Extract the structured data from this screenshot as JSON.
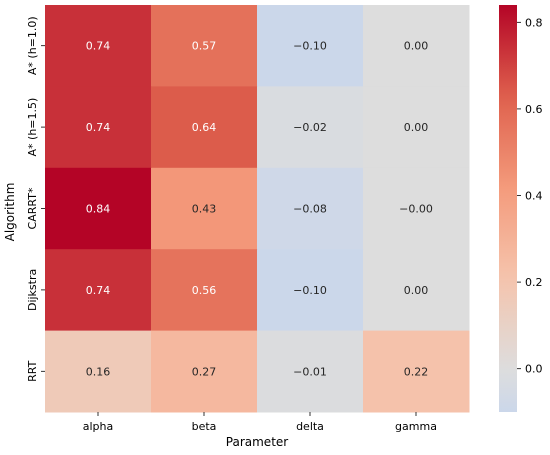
{
  "chart_data": {
    "type": "heatmap",
    "title": "",
    "xlabel": "Parameter",
    "ylabel": "Algorithm",
    "x_categories": [
      "alpha",
      "beta",
      "delta",
      "gamma"
    ],
    "y_categories": [
      "A* (h=1.0)",
      "A* (h=1.5)",
      "CARRT*",
      "Dijkstra",
      "RRT"
    ],
    "values": [
      [
        0.74,
        0.57,
        -0.1,
        0.0
      ],
      [
        0.74,
        0.64,
        -0.02,
        0.0
      ],
      [
        0.84,
        0.43,
        -0.08,
        -0.0
      ],
      [
        0.74,
        0.56,
        -0.1,
        0.0
      ],
      [
        0.16,
        0.27,
        -0.01,
        0.22
      ]
    ],
    "cell_labels": [
      [
        "0.74",
        "0.57",
        "−0.10",
        "0.00"
      ],
      [
        "0.74",
        "0.64",
        "−0.02",
        "0.00"
      ],
      [
        "0.84",
        "0.43",
        "−0.08",
        "−0.00"
      ],
      [
        "0.74",
        "0.56",
        "−0.10",
        "0.00"
      ],
      [
        "0.16",
        "0.27",
        "−0.01",
        "0.22"
      ]
    ],
    "colormap": "coolwarm",
    "vmin": -0.1,
    "vmax": 0.84,
    "colorbar_ticks": [
      {
        "value": 0.8,
        "label": "0.8"
      },
      {
        "value": 0.6,
        "label": "0.6"
      },
      {
        "value": 0.4,
        "label": "0.4"
      },
      {
        "value": 0.2,
        "label": "0.2"
      },
      {
        "value": 0.0,
        "label": "0.0"
      }
    ],
    "legend": "colorbar on the right"
  }
}
